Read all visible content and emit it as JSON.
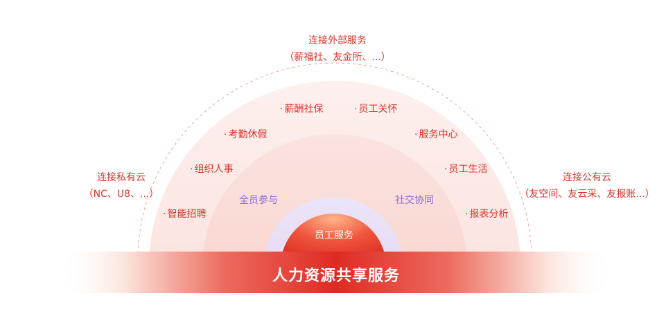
{
  "core": {
    "label": "员工服务"
  },
  "band": {
    "title": "人力资源共享服务"
  },
  "ring_labels": {
    "left": "全员参与",
    "right": "社交协同"
  },
  "modules": [
    "薪酬社保",
    "员工关怀",
    "考勤休假",
    "服务中心",
    "组织人事",
    "员工生活",
    "智能招聘",
    "报表分析"
  ],
  "connections": {
    "top": {
      "title": "连接外部服务",
      "detail": "（薪福社、友金所、...）"
    },
    "left": {
      "title": "连接私有云",
      "detail": "（NC、U8、...）"
    },
    "right": {
      "title": "连接公有云",
      "detail": "（友空间、友云采、友报账...）"
    }
  },
  "colors": {
    "accent_red": "#d9342b",
    "purple": "#8a6fd6",
    "band_red": "#e0312b"
  }
}
